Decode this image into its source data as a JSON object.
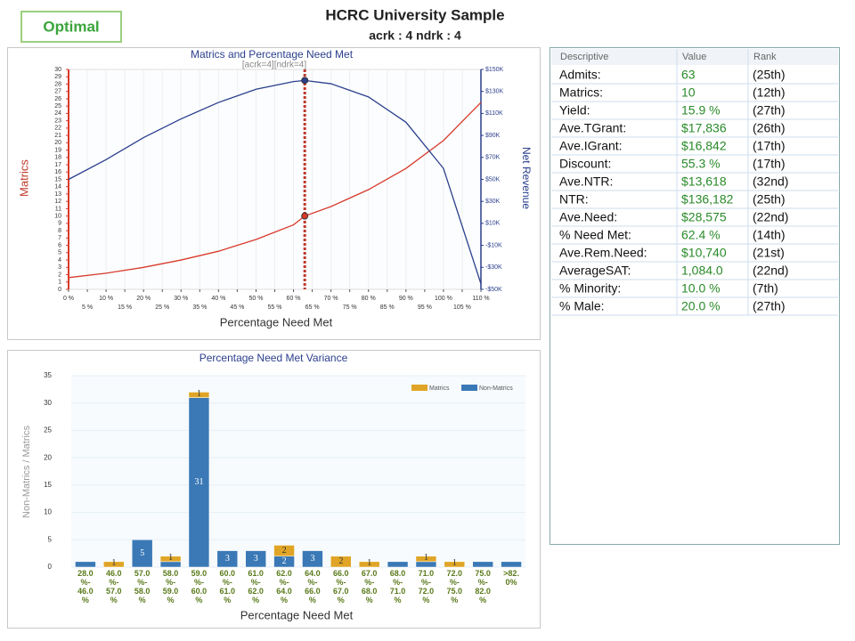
{
  "header": {
    "badge": "Optimal",
    "title": "HCRC University Sample",
    "subtitle": "acrk : 4  ndrk : 4"
  },
  "chart_data": [
    {
      "type": "line",
      "title": "Matrics and Percentage Need Met",
      "annotation": "[acrk=4][ndrk=4]",
      "xlabel": "Percentage Need Met",
      "ylabel": "Matrics",
      "y2label": "Net Revenue",
      "x": [
        0,
        10,
        20,
        30,
        40,
        50,
        60,
        63,
        70,
        80,
        90,
        100,
        110
      ],
      "xlim": [
        0,
        110
      ],
      "xticks": [
        {
          "value": 0,
          "label": "0 %"
        },
        {
          "value": 5,
          "label": "5 %"
        },
        {
          "value": 10,
          "label": "10 %"
        },
        {
          "value": 15,
          "label": "15 %"
        },
        {
          "value": 20,
          "label": "20 %"
        },
        {
          "value": 25,
          "label": "25 %"
        },
        {
          "value": 30,
          "label": "30 %"
        },
        {
          "value": 35,
          "label": "35 %"
        },
        {
          "value": 40,
          "label": "40 %"
        },
        {
          "value": 45,
          "label": "45 %"
        },
        {
          "value": 50,
          "label": "50 %"
        },
        {
          "value": 55,
          "label": "55 %"
        },
        {
          "value": 60,
          "label": "60 %"
        },
        {
          "value": 65,
          "label": "65 %"
        },
        {
          "value": 70,
          "label": "70 %"
        },
        {
          "value": 75,
          "label": "75 %"
        },
        {
          "value": 80,
          "label": "80 %"
        },
        {
          "value": 85,
          "label": "85 %"
        },
        {
          "value": 90,
          "label": "90 %"
        },
        {
          "value": 95,
          "label": "95 %"
        },
        {
          "value": 100,
          "label": "100 %"
        },
        {
          "value": 105,
          "label": "105 %"
        },
        {
          "value": 110,
          "label": "110 %"
        }
      ],
      "ylim": [
        0,
        30
      ],
      "yticks": [
        0,
        1,
        2,
        3,
        4,
        5,
        6,
        7,
        8,
        9,
        10,
        11,
        12,
        13,
        14,
        15,
        16,
        17,
        18,
        19,
        20,
        21,
        22,
        23,
        24,
        25,
        26,
        27,
        28,
        29,
        30
      ],
      "y2lim": [
        -50000,
        150000
      ],
      "y2ticks": [
        {
          "value": -50000,
          "label": "-$50K"
        },
        {
          "value": -30000,
          "label": "-$30K"
        },
        {
          "value": -10000,
          "label": "-$10K"
        },
        {
          "value": 10000,
          "label": "$10K"
        },
        {
          "value": 30000,
          "label": "$30K"
        },
        {
          "value": 50000,
          "label": "$50K"
        },
        {
          "value": 70000,
          "label": "$70K"
        },
        {
          "value": 90000,
          "label": "$90K"
        },
        {
          "value": 110000,
          "label": "$110K"
        },
        {
          "value": 130000,
          "label": "$130K"
        },
        {
          "value": 150000,
          "label": "$150K"
        }
      ],
      "highlight_x": 63,
      "series": [
        {
          "name": "Matrics",
          "color": "#d93a2b",
          "values": [
            1.6,
            2.2,
            3.0,
            4.0,
            5.2,
            6.8,
            8.8,
            10,
            11.3,
            13.6,
            16.5,
            20.3,
            25.5
          ]
        },
        {
          "name": "Net Revenue",
          "color": "#2b3f8c",
          "axis": "y2",
          "values": [
            50000,
            68000,
            88000,
            105000,
            120000,
            132000,
            139000,
            140000,
            137000,
            125000,
            102000,
            60000,
            -45000
          ]
        }
      ]
    },
    {
      "type": "stacked_bar",
      "title": "Percentage Need Met Variance",
      "xlabel": "Percentage Need Met",
      "ylabel": "Non-Matrics / Matrics",
      "categories": [
        "28.0\n%-\n46.0\n%",
        "46.0\n%-\n57.0\n%",
        "57.0\n%-\n58.0\n%",
        "58.0\n%-\n59.0\n%",
        "59.0\n%-\n60.0\n%",
        "60.0\n%-\n61.0\n%",
        "61.0\n%-\n62.0\n%",
        "62.0\n%-\n64.0\n%",
        "64.0\n%-\n66.0\n%",
        "66.0\n%-\n67.0\n%",
        "67.0\n%-\n68.0\n%",
        "68.0\n%-\n71.0\n%",
        "71.0\n%-\n72.0\n%",
        "72.0\n%-\n75.0\n%",
        "75.0\n%-\n82.0\n%",
        ">82.\n0%"
      ],
      "ylim": [
        0,
        35
      ],
      "yticks": [
        0,
        5,
        10,
        15,
        20,
        25,
        30,
        35
      ],
      "legend": "top-right",
      "series": [
        {
          "name": "Matrics",
          "color": "#e0a526",
          "values": [
            0,
            1,
            0,
            1,
            1,
            0,
            0,
            2,
            0,
            2,
            1,
            0,
            1,
            1,
            0,
            0
          ]
        },
        {
          "name": "Non-Matrics",
          "color": "#3b79b6",
          "values": [
            1,
            0,
            5,
            1,
            31,
            3,
            3,
            2,
            3,
            0,
            0,
            1,
            1,
            0,
            1,
            1
          ]
        }
      ]
    }
  ],
  "table": {
    "columns": [
      "Descriptive",
      "Value",
      "Rank"
    ],
    "rows": [
      [
        "Admits:",
        "63",
        "(25th)"
      ],
      [
        "Matrics:",
        "10",
        "(12th)"
      ],
      [
        "Yield:",
        "15.9 %",
        "(27th)"
      ],
      [
        "Ave.TGrant:",
        "$17,836",
        "(26th)"
      ],
      [
        "Ave.IGrant:",
        "$16,842",
        "(17th)"
      ],
      [
        "Discount:",
        "55.3 %",
        "(17th)"
      ],
      [
        "Ave.NTR:",
        "$13,618",
        "(32nd)"
      ],
      [
        "NTR:",
        "$136,182",
        "(25th)"
      ],
      [
        "Ave.Need:",
        "$28,575",
        "(22nd)"
      ],
      [
        "% Need Met:",
        "62.4 %",
        "(14th)"
      ],
      [
        "Ave.Rem.Need:",
        "$10,740",
        "(21st)"
      ],
      [
        "AverageSAT:",
        "1,084.0",
        "(22nd)"
      ],
      [
        "% Minority:",
        "10.0 %",
        "(7th)"
      ],
      [
        "% Male:",
        "20.0 %",
        "(27th)"
      ]
    ]
  }
}
